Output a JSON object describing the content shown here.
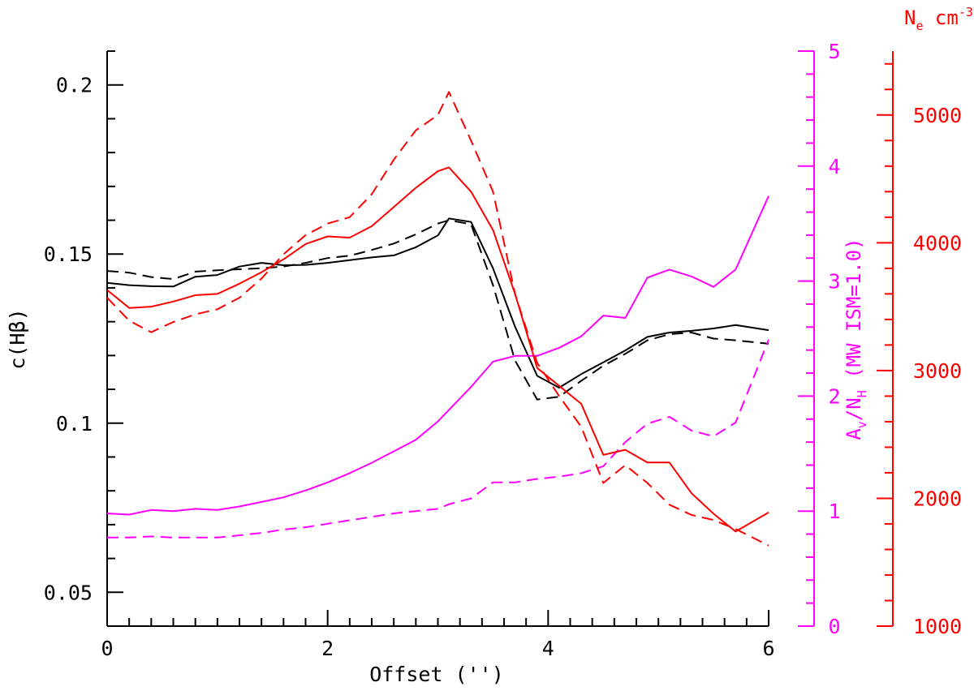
{
  "chart_data": {
    "type": "line",
    "xlabel": "Offset ('')",
    "xlim": [
      0,
      6
    ],
    "x_ticks": [
      "0",
      "2",
      "4",
      "6"
    ],
    "axes": {
      "left": {
        "label": "c(Hβ)",
        "ylim": [
          0.04,
          0.21
        ],
        "ticks": [
          "0.05",
          "0.1",
          "0.15",
          "0.2"
        ],
        "color": "#000000"
      },
      "mid_right": {
        "label_main": "A",
        "label_sub1": "v",
        "label_slash": "/N",
        "label_sub2": "H",
        "label_tail": " (MW ISM=1.0)",
        "ylim": [
          0,
          5
        ],
        "ticks": [
          "0",
          "1",
          "2",
          "3",
          "4",
          "5"
        ],
        "color": "#ff00ff"
      },
      "far_right": {
        "label_main": "N",
        "label_sub": "e",
        "label_unit": " cm",
        "label_sup": "-3",
        "ylim": [
          1000,
          5500
        ],
        "ticks": [
          "1000",
          "2000",
          "3000",
          "4000",
          "5000"
        ],
        "color": "#ff0000"
      }
    },
    "x": [
      0,
      0.2,
      0.4,
      0.6,
      0.8,
      1.0,
      1.2,
      1.4,
      1.6,
      1.8,
      2.0,
      2.2,
      2.4,
      2.6,
      2.8,
      3.0,
      3.1,
      3.3,
      3.5,
      3.7,
      3.9,
      4.1,
      4.3,
      4.5,
      4.7,
      4.9,
      5.1,
      5.3,
      5.5,
      5.7,
      6.0
    ],
    "series": [
      {
        "name": "c(Hbeta) solid",
        "axis": "left",
        "color": "#000000",
        "dash": false,
        "values": [
          0.1415,
          0.1408,
          0.1405,
          0.1404,
          0.1433,
          0.1438,
          0.1463,
          0.1474,
          0.1467,
          0.1468,
          0.1474,
          0.1482,
          0.149,
          0.1496,
          0.152,
          0.1555,
          0.1605,
          0.1595,
          0.1458,
          0.1285,
          0.114,
          0.1105,
          0.1145,
          0.118,
          0.1215,
          0.1255,
          0.1268,
          0.1273,
          0.128,
          0.129,
          0.1275
        ]
      },
      {
        "name": "c(Hbeta) dashed",
        "axis": "left",
        "color": "#000000",
        "dash": true,
        "values": [
          0.145,
          0.1445,
          0.1432,
          0.1426,
          0.1448,
          0.1452,
          0.1455,
          0.1458,
          0.1463,
          0.1474,
          0.1488,
          0.1495,
          0.1512,
          0.1531,
          0.1558,
          0.159,
          0.16,
          0.1588,
          0.1408,
          0.1185,
          0.107,
          0.1078,
          0.1125,
          0.117,
          0.1205,
          0.1245,
          0.1263,
          0.1268,
          0.125,
          0.1245,
          0.1235
        ]
      },
      {
        "name": "Av/NH solid",
        "axis": "mid_right",
        "color": "#ff00ff",
        "dash": false,
        "values": [
          0.98,
          0.97,
          1.01,
          1.0,
          1.02,
          1.01,
          1.04,
          1.08,
          1.12,
          1.18,
          1.25,
          1.33,
          1.42,
          1.52,
          1.62,
          1.78,
          1.88,
          2.08,
          2.3,
          2.35,
          2.35,
          2.42,
          2.52,
          2.7,
          2.68,
          3.03,
          3.1,
          3.04,
          2.95,
          3.1,
          3.74
        ]
      },
      {
        "name": "Av/NH dashed",
        "axis": "mid_right",
        "color": "#ff00ff",
        "dash": true,
        "values": [
          0.77,
          0.77,
          0.78,
          0.77,
          0.77,
          0.77,
          0.79,
          0.81,
          0.84,
          0.86,
          0.89,
          0.92,
          0.95,
          0.98,
          1.0,
          1.02,
          1.06,
          1.11,
          1.25,
          1.25,
          1.28,
          1.3,
          1.33,
          1.39,
          1.6,
          1.76,
          1.82,
          1.7,
          1.65,
          1.77,
          2.49
        ]
      },
      {
        "name": "Ne solid",
        "axis": "far_right",
        "color": "#ff0000",
        "dash": false,
        "values": [
          3630,
          3490,
          3500,
          3540,
          3590,
          3600,
          3680,
          3770,
          3870,
          3990,
          4050,
          4040,
          4130,
          4280,
          4430,
          4560,
          4590,
          4400,
          4100,
          3600,
          3020,
          2880,
          2740,
          2340,
          2380,
          2280,
          2280,
          2040,
          1880,
          1740,
          1890
        ]
      },
      {
        "name": "Ne dashed",
        "axis": "far_right",
        "color": "#ff0000",
        "dash": true,
        "values": [
          3570,
          3390,
          3300,
          3380,
          3440,
          3480,
          3570,
          3720,
          3910,
          4060,
          4150,
          4200,
          4380,
          4650,
          4880,
          5000,
          5180,
          4800,
          4400,
          3600,
          3060,
          2800,
          2560,
          2120,
          2260,
          2120,
          1950,
          1870,
          1830,
          1760,
          1630
        ]
      }
    ]
  }
}
